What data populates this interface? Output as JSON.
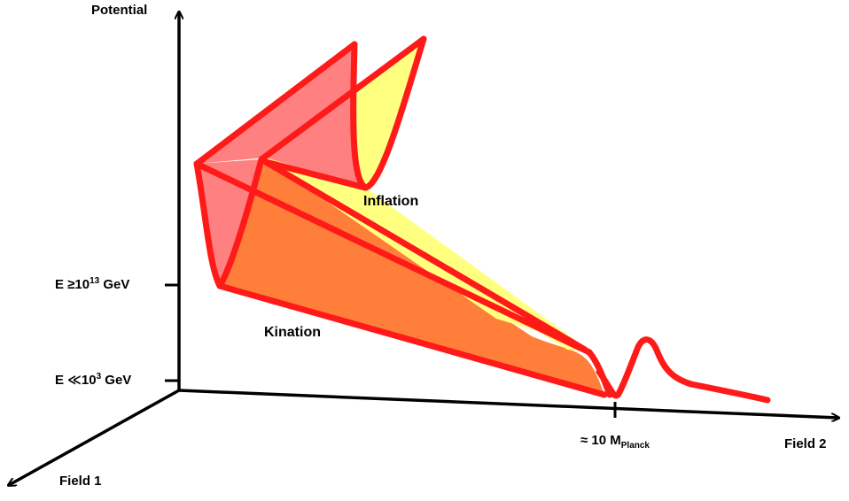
{
  "axes": {
    "potential": "Potential",
    "field1": "Field 1",
    "field2": "Field 2"
  },
  "ticks": {
    "high_energy": {
      "prefix": "E ≥10",
      "exp": "13",
      "suffix": " GeV"
    },
    "low_energy": {
      "prefix": "E ≪10",
      "exp": "3",
      "suffix": " GeV"
    },
    "planck": {
      "prefix": "≈ 10 M",
      "sub": "Planck"
    }
  },
  "regions": {
    "inflation": "Inflation",
    "kination": "Kination"
  },
  "colors": {
    "outline": "#ff1a1a",
    "pink_face": "#ff8080",
    "yellow_face": "#ffff80",
    "orange_face": "#ff7f3a",
    "axis": "#000000"
  }
}
